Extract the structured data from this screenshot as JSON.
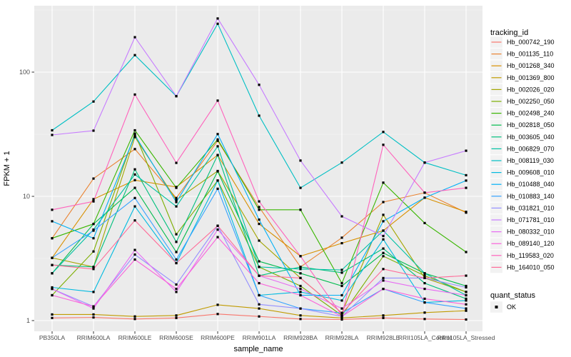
{
  "figure": {
    "background": "#FFFFFF",
    "panel_background": "#EBEBEB",
    "grid_major_color": "#FFFFFF",
    "grid_minor_color": "#FFFFFF",
    "tick_color": "#333333",
    "tick_label_color": "#4D4D4D",
    "legend_key_fill": "#F2F2F2",
    "marker_color": "#000000"
  },
  "chart_data": {
    "type": "line",
    "title": "",
    "xlabel": "sample_name",
    "ylabel": "FPKM + 1",
    "y_scale": "log10",
    "y_ticks": [
      "1",
      "10",
      "100"
    ],
    "y_tick_values": [
      1,
      10,
      100
    ],
    "ylim": [
      0.95,
      380
    ],
    "grid": "on",
    "legend_position": "right",
    "categories": [
      "PB350LA",
      "RRIM600LA",
      "RRIM600LE",
      "RRIM600SE",
      "RRIM600PE",
      "RRIM901LA",
      "RRIM928BA",
      "RRIM928LA",
      "RRIM928LE",
      "RRII105LA_Control",
      "RRII105LA_Stressed"
    ],
    "legend": {
      "title": "tracking_id"
    },
    "quant_legend": {
      "title": "quant_status",
      "items": [
        {
          "label": "OK",
          "marker": "black-square"
        }
      ]
    },
    "series": [
      {
        "name": "Hb_000742_190",
        "color": "#F8766D",
        "values": [
          1.05,
          1.06,
          1.03,
          1.05,
          1.13,
          1.08,
          1.03,
          1.02,
          1.05,
          1.03,
          1.02
        ]
      },
      {
        "name": "Hb_001135_110",
        "color": "#EA8331",
        "values": [
          4.6,
          13.9,
          24,
          9.7,
          28,
          8.2,
          2.7,
          4.65,
          9.0,
          10.7,
          7.4
        ]
      },
      {
        "name": "Hb_001268_340",
        "color": "#D89000",
        "values": [
          3.2,
          9.5,
          13.5,
          11.9,
          21.5,
          6.0,
          3.3,
          4.2,
          5.3,
          9.75,
          7.5
        ]
      },
      {
        "name": "Hb_001369_800",
        "color": "#C09B00",
        "values": [
          1.12,
          1.12,
          1.08,
          1.1,
          1.34,
          1.25,
          1.1,
          1.05,
          1.1,
          1.16,
          1.2
        ]
      },
      {
        "name": "Hb_002026_020",
        "color": "#A3A500",
        "values": [
          3.2,
          2.7,
          30,
          9.35,
          16,
          4.4,
          2.2,
          1.15,
          7.1,
          2.2,
          1.7
        ]
      },
      {
        "name": "Hb_002250_050",
        "color": "#7CAE00",
        "values": [
          1.6,
          3.6,
          32,
          4.95,
          13.4,
          2.7,
          1.9,
          1.1,
          3.3,
          2.3,
          1.7
        ]
      },
      {
        "name": "Hb_002498_240",
        "color": "#39B600",
        "values": [
          4.6,
          6.0,
          34,
          11.7,
          28.7,
          7.8,
          7.8,
          2.0,
          12.9,
          6.1,
          3.56
        ]
      },
      {
        "name": "Hb_002818_050",
        "color": "#00BB4E",
        "values": [
          2.4,
          6.0,
          11.7,
          3.56,
          15.9,
          3.0,
          2.4,
          1.9,
          3.5,
          2.4,
          1.9
        ]
      },
      {
        "name": "Hb_003605_040",
        "color": "#00BF7D",
        "values": [
          2.8,
          2.7,
          16.5,
          4.3,
          21.5,
          2.3,
          2.7,
          2.43,
          3.8,
          2.0,
          1.5
        ]
      },
      {
        "name": "Hb_006829_070",
        "color": "#00C1A3",
        "values": [
          2.4,
          5.4,
          15,
          8.3,
          25.3,
          2.7,
          2.6,
          2.56,
          5.3,
          2.4,
          1.6
        ]
      },
      {
        "name": "Hb_008119_030",
        "color": "#00BFC4",
        "values": [
          34,
          58,
          137,
          64,
          245,
          44.6,
          11.7,
          18.7,
          33,
          18.7,
          14.8
        ]
      },
      {
        "name": "Hb_009608_010",
        "color": "#00BAE0",
        "values": [
          1.85,
          1.7,
          8.3,
          2.9,
          13.4,
          1.6,
          1.7,
          1.45,
          4.5,
          1.4,
          1.45
        ]
      },
      {
        "name": "Hb_010488_040",
        "color": "#00B0F6",
        "values": [
          6.3,
          4.6,
          31,
          9.0,
          31.7,
          6.5,
          1.6,
          1.6,
          6.3,
          9.75,
          13.4
        ]
      },
      {
        "name": "Hb_010883_140",
        "color": "#35A2FF",
        "values": [
          3.2,
          5.3,
          9.7,
          3.1,
          11.5,
          1.6,
          1.25,
          1.15,
          1.8,
          1.4,
          1.25
        ]
      },
      {
        "name": "Hb_031821_010",
        "color": "#9590FF",
        "values": [
          1.8,
          1.3,
          3.4,
          1.95,
          5.8,
          1.35,
          1.25,
          1.08,
          2.2,
          2.2,
          1.85
        ]
      },
      {
        "name": "Hb_071781_010",
        "color": "#C77CFF",
        "values": [
          31.2,
          33.8,
          191,
          64,
          270,
          79,
          19.4,
          6.9,
          4.8,
          18.7,
          23.3
        ]
      },
      {
        "name": "Hb_080332_010",
        "color": "#E76BF3",
        "values": [
          1.8,
          1.25,
          3.7,
          1.7,
          5.4,
          2.3,
          1.8,
          1.25,
          2.1,
          1.8,
          1.6
        ]
      },
      {
        "name": "Hb_089140_120",
        "color": "#FA62DB",
        "values": [
          1.6,
          1.3,
          3.1,
          1.8,
          4.7,
          2.0,
          1.6,
          1.08,
          1.8,
          1.5,
          1.35
        ]
      },
      {
        "name": "Hb_119583_020",
        "color": "#FF62BC",
        "values": [
          7.8,
          9.1,
          66,
          18.6,
          59,
          9.1,
          3.3,
          1.1,
          26,
          10.7,
          11.7
        ]
      },
      {
        "name": "Hb_164010_050",
        "color": "#FF6A98",
        "values": [
          2.8,
          2.6,
          6.4,
          2.9,
          5.8,
          2.3,
          2.2,
          1.15,
          2.6,
          2.2,
          2.3
        ]
      }
    ]
  }
}
